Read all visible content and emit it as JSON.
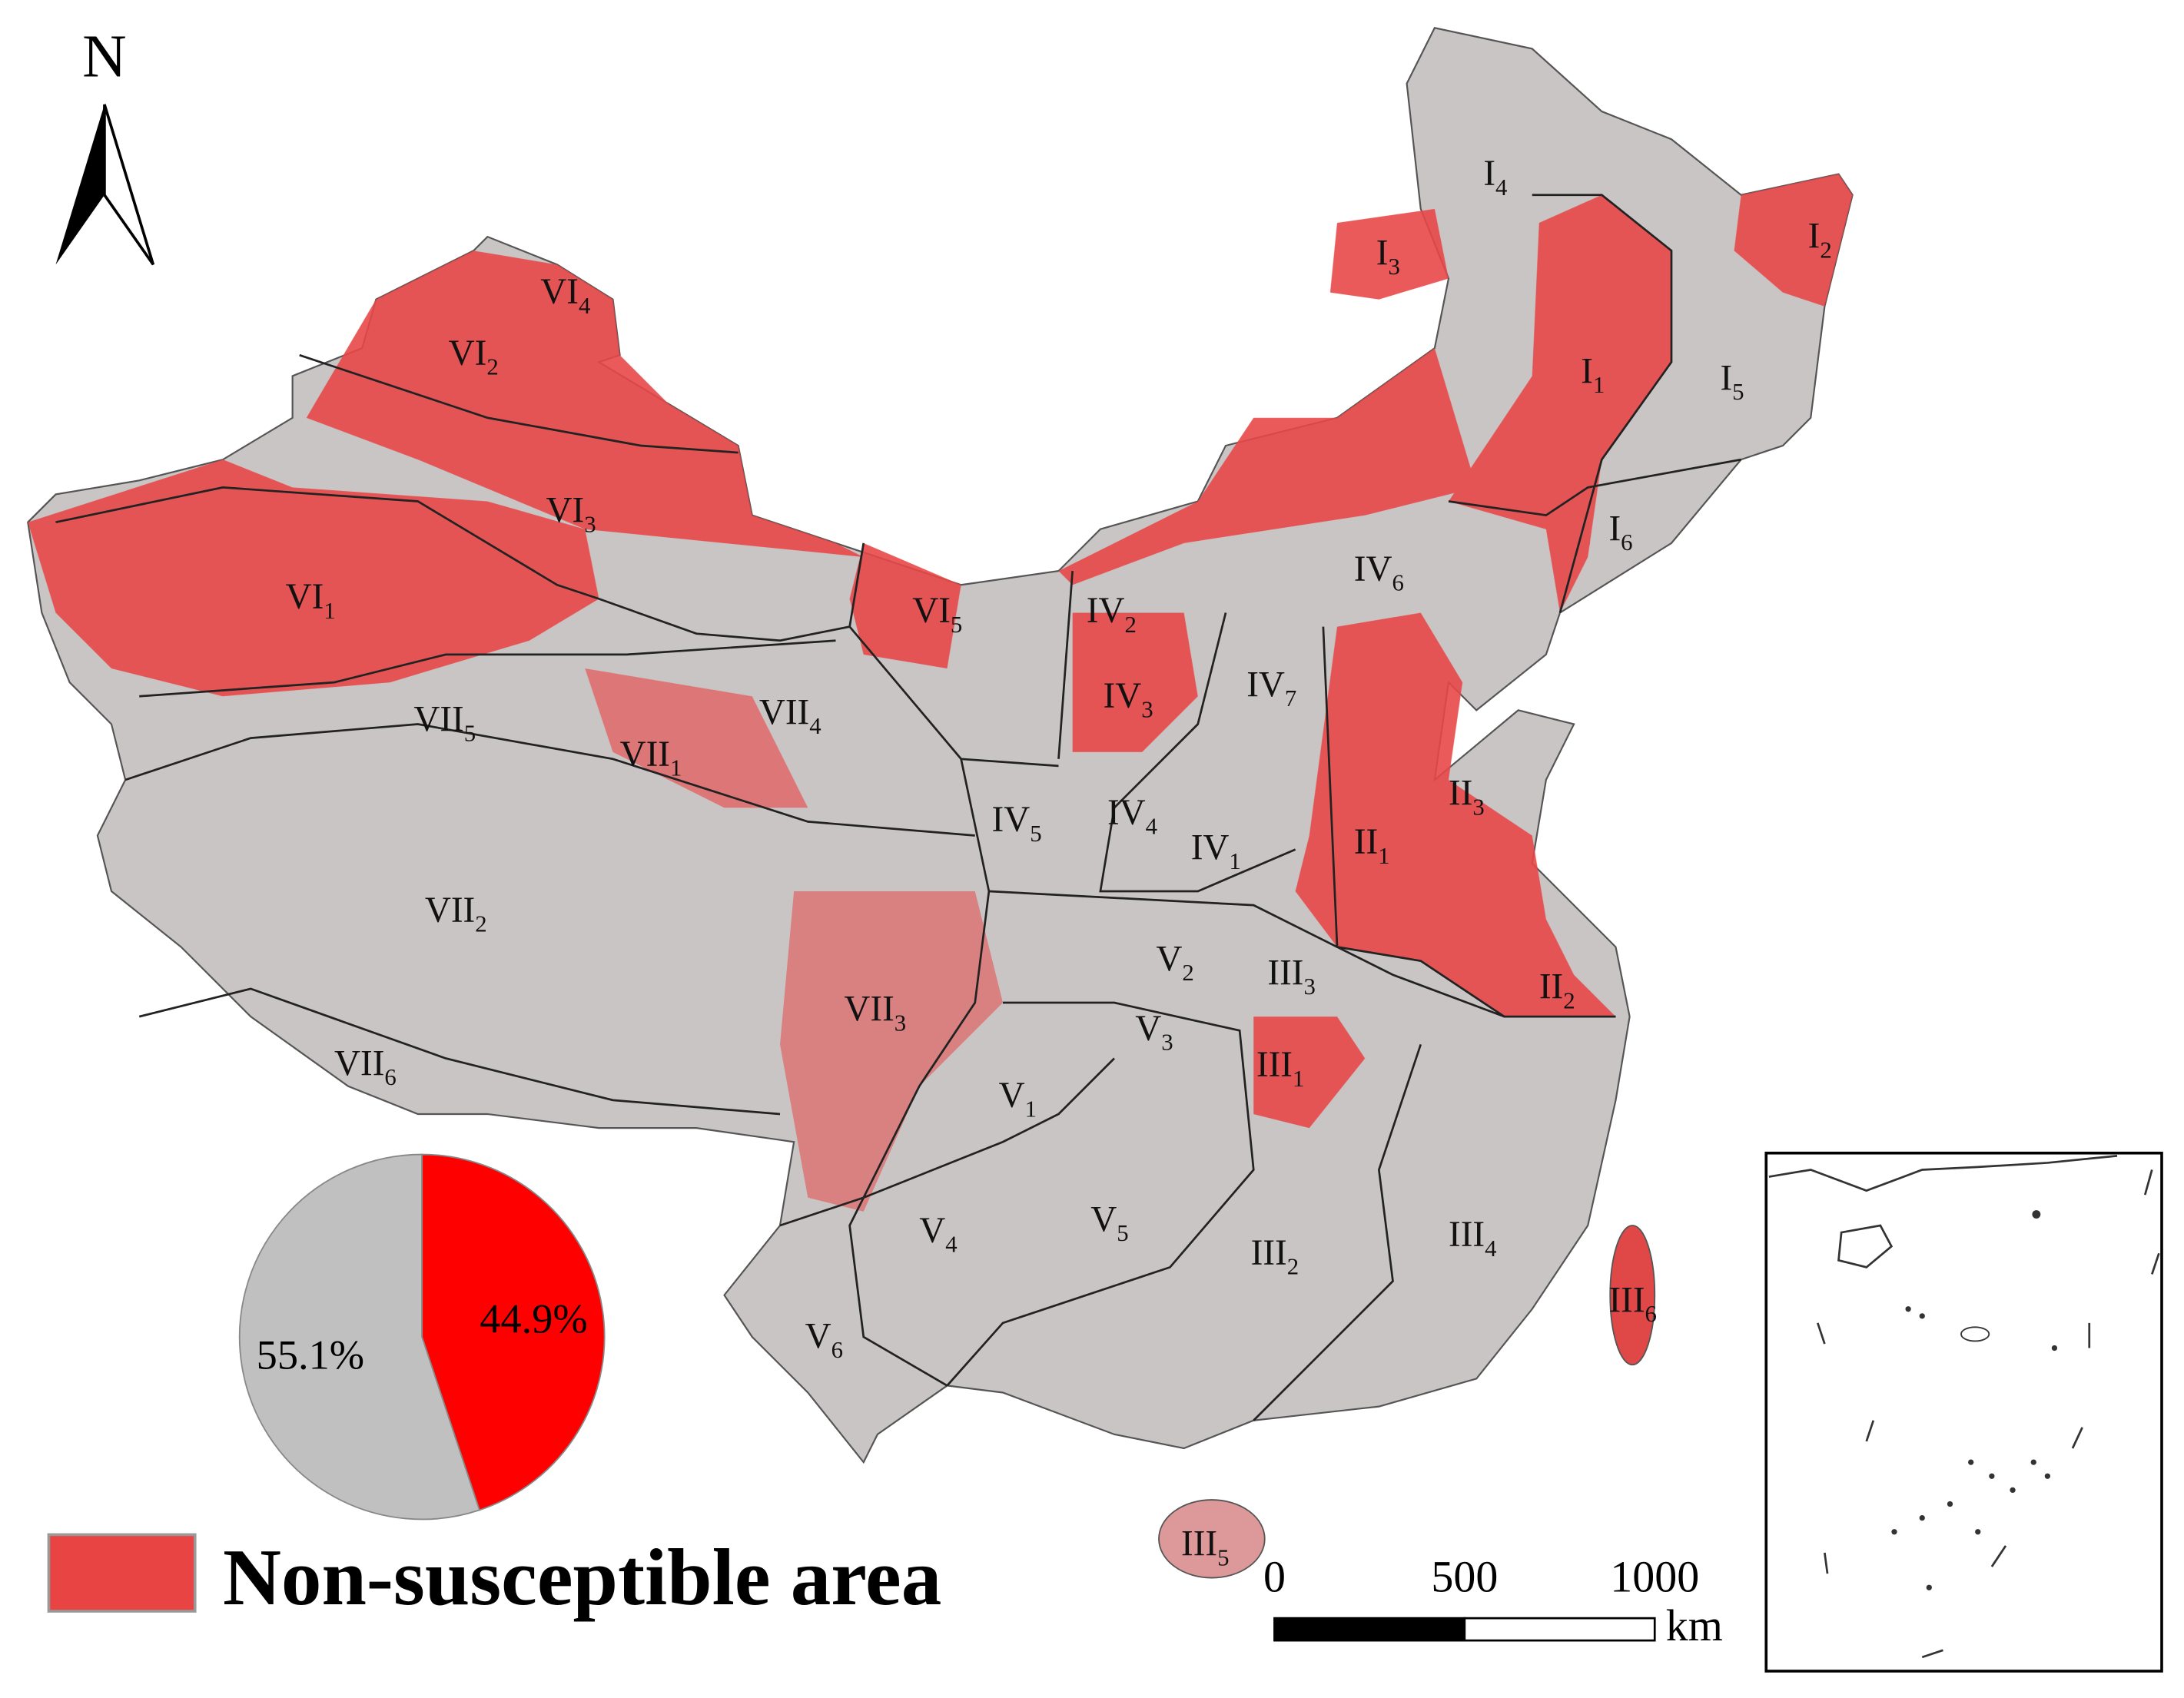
{
  "north_label": "N",
  "regions": [
    {
      "numeral": "I",
      "sub": "4"
    },
    {
      "numeral": "I",
      "sub": "3"
    },
    {
      "numeral": "I",
      "sub": "2"
    },
    {
      "numeral": "I",
      "sub": "1"
    },
    {
      "numeral": "I",
      "sub": "5"
    },
    {
      "numeral": "I",
      "sub": "6"
    },
    {
      "numeral": "VI",
      "sub": "4"
    },
    {
      "numeral": "VI",
      "sub": "2"
    },
    {
      "numeral": "VI",
      "sub": "3"
    },
    {
      "numeral": "VI",
      "sub": "1"
    },
    {
      "numeral": "VI",
      "sub": "5"
    },
    {
      "numeral": "IV",
      "sub": "2"
    },
    {
      "numeral": "IV",
      "sub": "6"
    },
    {
      "numeral": "IV",
      "sub": "3"
    },
    {
      "numeral": "IV",
      "sub": "7"
    },
    {
      "numeral": "VII",
      "sub": "4"
    },
    {
      "numeral": "VII",
      "sub": "5"
    },
    {
      "numeral": "VII",
      "sub": "1"
    },
    {
      "numeral": "IV",
      "sub": "5"
    },
    {
      "numeral": "IV",
      "sub": "4"
    },
    {
      "numeral": "IV",
      "sub": "1"
    },
    {
      "numeral": "II",
      "sub": "1"
    },
    {
      "numeral": "II",
      "sub": "3"
    },
    {
      "numeral": "VII",
      "sub": "2"
    },
    {
      "numeral": "V",
      "sub": "2"
    },
    {
      "numeral": "III",
      "sub": "3"
    },
    {
      "numeral": "II",
      "sub": "2"
    },
    {
      "numeral": "VII",
      "sub": "3"
    },
    {
      "numeral": "V",
      "sub": "3"
    },
    {
      "numeral": "III",
      "sub": "1"
    },
    {
      "numeral": "V",
      "sub": "1"
    },
    {
      "numeral": "VII",
      "sub": "6"
    },
    {
      "numeral": "V",
      "sub": "4"
    },
    {
      "numeral": "V",
      "sub": "5"
    },
    {
      "numeral": "III",
      "sub": "2"
    },
    {
      "numeral": "III",
      "sub": "4"
    },
    {
      "numeral": "III",
      "sub": "6"
    },
    {
      "numeral": "V",
      "sub": "6"
    },
    {
      "numeral": "III",
      "sub": "5"
    }
  ],
  "chart_data": {
    "type": "pie",
    "values": [
      55.1,
      44.9
    ],
    "value_labels": [
      "55.1%",
      "44.9%"
    ],
    "colors": [
      "#c0c0c0",
      "#ff0000"
    ]
  },
  "legend": {
    "label": "Non-susceptible area",
    "color": "#e84444"
  },
  "scale_bar": {
    "ticks": [
      0,
      500,
      1000
    ],
    "unit": "km"
  }
}
